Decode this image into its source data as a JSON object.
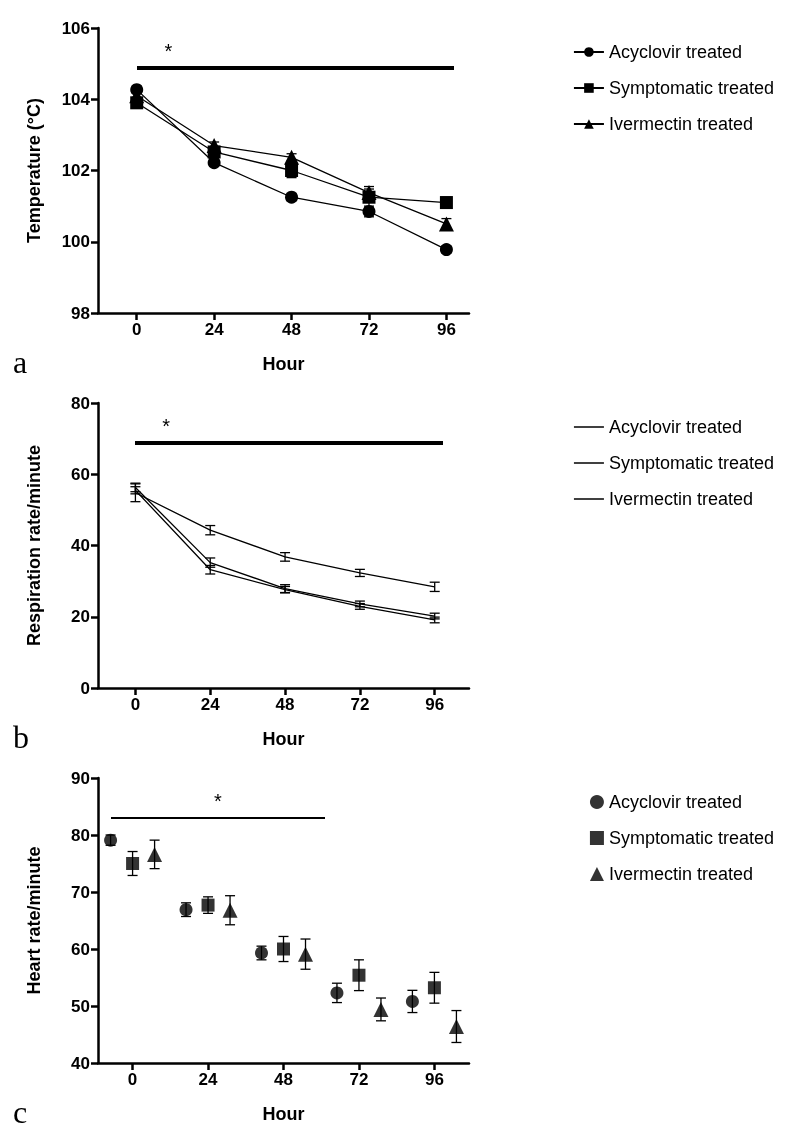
{
  "chart_data": [
    {
      "type": "line",
      "title": "a",
      "xlabel": "Hour",
      "ylabel": "Temperature (°C)",
      "x": [
        0,
        24,
        48,
        72,
        96
      ],
      "xlim": [
        -12,
        103
      ],
      "xticks": [
        0,
        24,
        48,
        72,
        96
      ],
      "ylim": [
        98,
        106
      ],
      "yticks": [
        98,
        100,
        102,
        104,
        106
      ],
      "grid": false,
      "legend": "top right",
      "annotations": [
        "*"
      ],
      "series": [
        {
          "name": "Acyclovir treated",
          "color": "#000000",
          "marker": "circle",
          "values": [
            104.27,
            102.22,
            101.25,
            100.85,
            99.78
          ],
          "errors": [
            0.1,
            0.1,
            0.1,
            0.15,
            0.1
          ]
        },
        {
          "name": "Symptomatic treated",
          "color": "#000000",
          "marker": "square",
          "values": [
            103.9,
            102.52,
            102.0,
            101.25,
            101.1
          ],
          "errors": [
            0.15,
            0.15,
            0.2,
            0.3,
            0.15
          ]
        },
        {
          "name": "Ivermectin treated",
          "color": "#000000",
          "marker": "triangle",
          "values": [
            104.1,
            102.7,
            102.37,
            101.38,
            100.5
          ],
          "errors": [
            0.1,
            0.1,
            0.1,
            0.1,
            0.15
          ]
        }
      ]
    },
    {
      "type": "line",
      "title": "b",
      "xlabel": "Hour",
      "ylabel": "Respiration rate/minute",
      "x": [
        0,
        24,
        48,
        72,
        96
      ],
      "xlim": [
        -12,
        107
      ],
      "xticks": [
        0,
        24,
        48,
        72,
        96
      ],
      "ylim": [
        0,
        80
      ],
      "yticks": [
        0,
        20,
        40,
        60,
        80
      ],
      "grid": false,
      "legend": "top right",
      "marker": "none",
      "annotations": [
        "*"
      ],
      "series": [
        {
          "name": "Acyclovir treated",
          "color": "#000000",
          "values": [
            54.8,
            44.3,
            36.8,
            32.3,
            28.4
          ],
          "errors": [
            2.5,
            1.3,
            1.2,
            1,
            1.3
          ]
        },
        {
          "name": "Symptomatic treated",
          "color": "#000000",
          "values": [
            56.3,
            35.2,
            27.9,
            23.6,
            20.2
          ],
          "errors": [
            1.2,
            1.3,
            1.1,
            0.8,
            0.8
          ]
        },
        {
          "name": "Ivermectin treated",
          "color": "#000000",
          "values": [
            55.5,
            33.2,
            27.6,
            22.9,
            19.1
          ],
          "errors": [
            1,
            1.2,
            0.9,
            0.8,
            0.8
          ]
        }
      ]
    },
    {
      "type": "scatter",
      "title": "c",
      "xlabel": "Hour",
      "ylabel": "Heart rate/minute",
      "xlim": [
        -11,
        107
      ],
      "xticks": [
        0,
        24,
        48,
        72,
        96
      ],
      "ylim": [
        40,
        90
      ],
      "yticks": [
        40,
        50,
        60,
        70,
        80,
        90
      ],
      "grid": false,
      "legend": "top right",
      "annotations": [
        "*"
      ],
      "series": [
        {
          "name": "Acyclovir treated",
          "color": "#000000",
          "marker": "circle",
          "x": [
            -7,
            17,
            41,
            65,
            89
          ],
          "values": [
            79.1,
            66.9,
            59.3,
            52.3,
            50.8
          ],
          "errors": [
            0.9,
            1.2,
            1.2,
            1.7,
            1.95
          ]
        },
        {
          "name": "Symptomatic treated",
          "color": "#000000",
          "marker": "square",
          "x": [
            0,
            24,
            48,
            72,
            96
          ],
          "values": [
            75.0,
            67.7,
            60.0,
            55.4,
            53.2
          ],
          "errors": [
            2.1,
            1.45,
            2.2,
            2.7,
            2.7
          ]
        },
        {
          "name": "Ivermectin treated",
          "color": "#000000",
          "marker": "triangle",
          "x": [
            7,
            31,
            55,
            79,
            103
          ],
          "values": [
            76.6,
            66.8,
            59.1,
            49.4,
            46.4
          ],
          "errors": [
            2.5,
            2.55,
            2.65,
            2.0,
            2.8
          ]
        }
      ]
    }
  ]
}
